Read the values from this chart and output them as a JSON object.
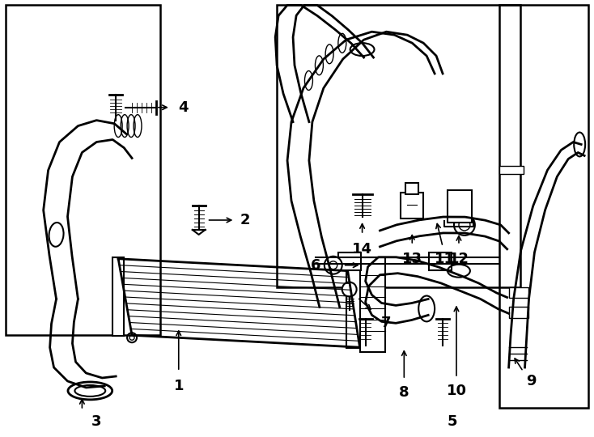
{
  "bg_color": "#ffffff",
  "line_color": "#000000",
  "lw": 1.5,
  "fig_width": 7.34,
  "fig_height": 5.4,
  "dpi": 100
}
